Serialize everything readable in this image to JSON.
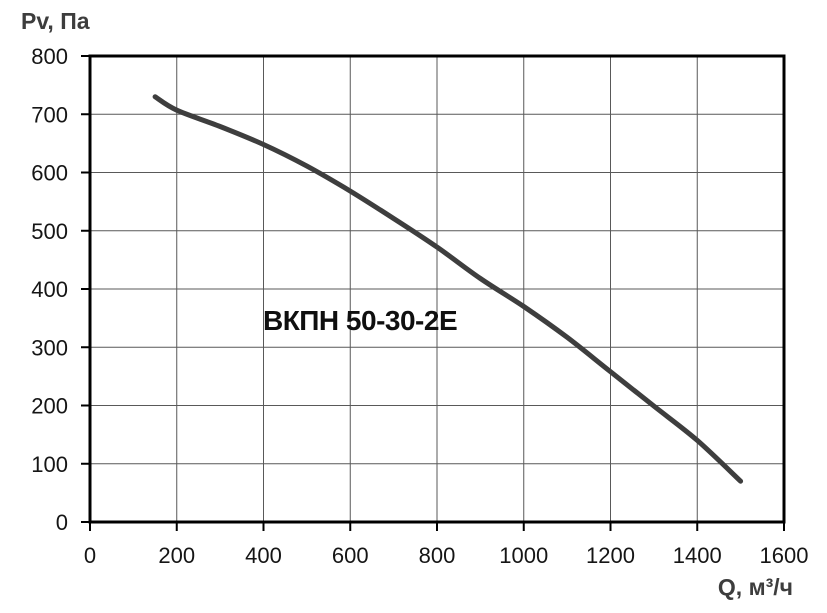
{
  "page": {
    "background": "#ffffff"
  },
  "chart_data": {
    "type": "line",
    "title": "",
    "xlabel": "Q, м³/ч",
    "ylabel": "Pv, Па",
    "xlim": [
      0,
      1600
    ],
    "ylim": [
      0,
      800
    ],
    "x_ticks": [
      0,
      200,
      400,
      600,
      800,
      1000,
      1200,
      1400,
      1600
    ],
    "y_ticks": [
      0,
      100,
      200,
      300,
      400,
      500,
      600,
      700,
      800
    ],
    "grid": true,
    "legend_position": "none",
    "annotation": "ВКПН 50-30-2Е",
    "series": [
      {
        "name": "ВКПН 50-30-2Е",
        "points": [
          [
            150,
            730
          ],
          [
            200,
            707
          ],
          [
            300,
            679
          ],
          [
            400,
            648
          ],
          [
            500,
            611
          ],
          [
            600,
            568
          ],
          [
            700,
            521
          ],
          [
            800,
            472
          ],
          [
            900,
            418
          ],
          [
            1000,
            370
          ],
          [
            1100,
            317
          ],
          [
            1200,
            258
          ],
          [
            1300,
            199
          ],
          [
            1400,
            140
          ],
          [
            1500,
            70
          ]
        ]
      }
    ]
  },
  "style": {
    "curve_color": "#3e3e3e",
    "curve_width": 5,
    "grid_color": "#595959",
    "axis_border_color": "#000000",
    "tick_color": "#000000",
    "tick_label_color": "#151515",
    "axis_title_color": "#3d3d3d"
  }
}
